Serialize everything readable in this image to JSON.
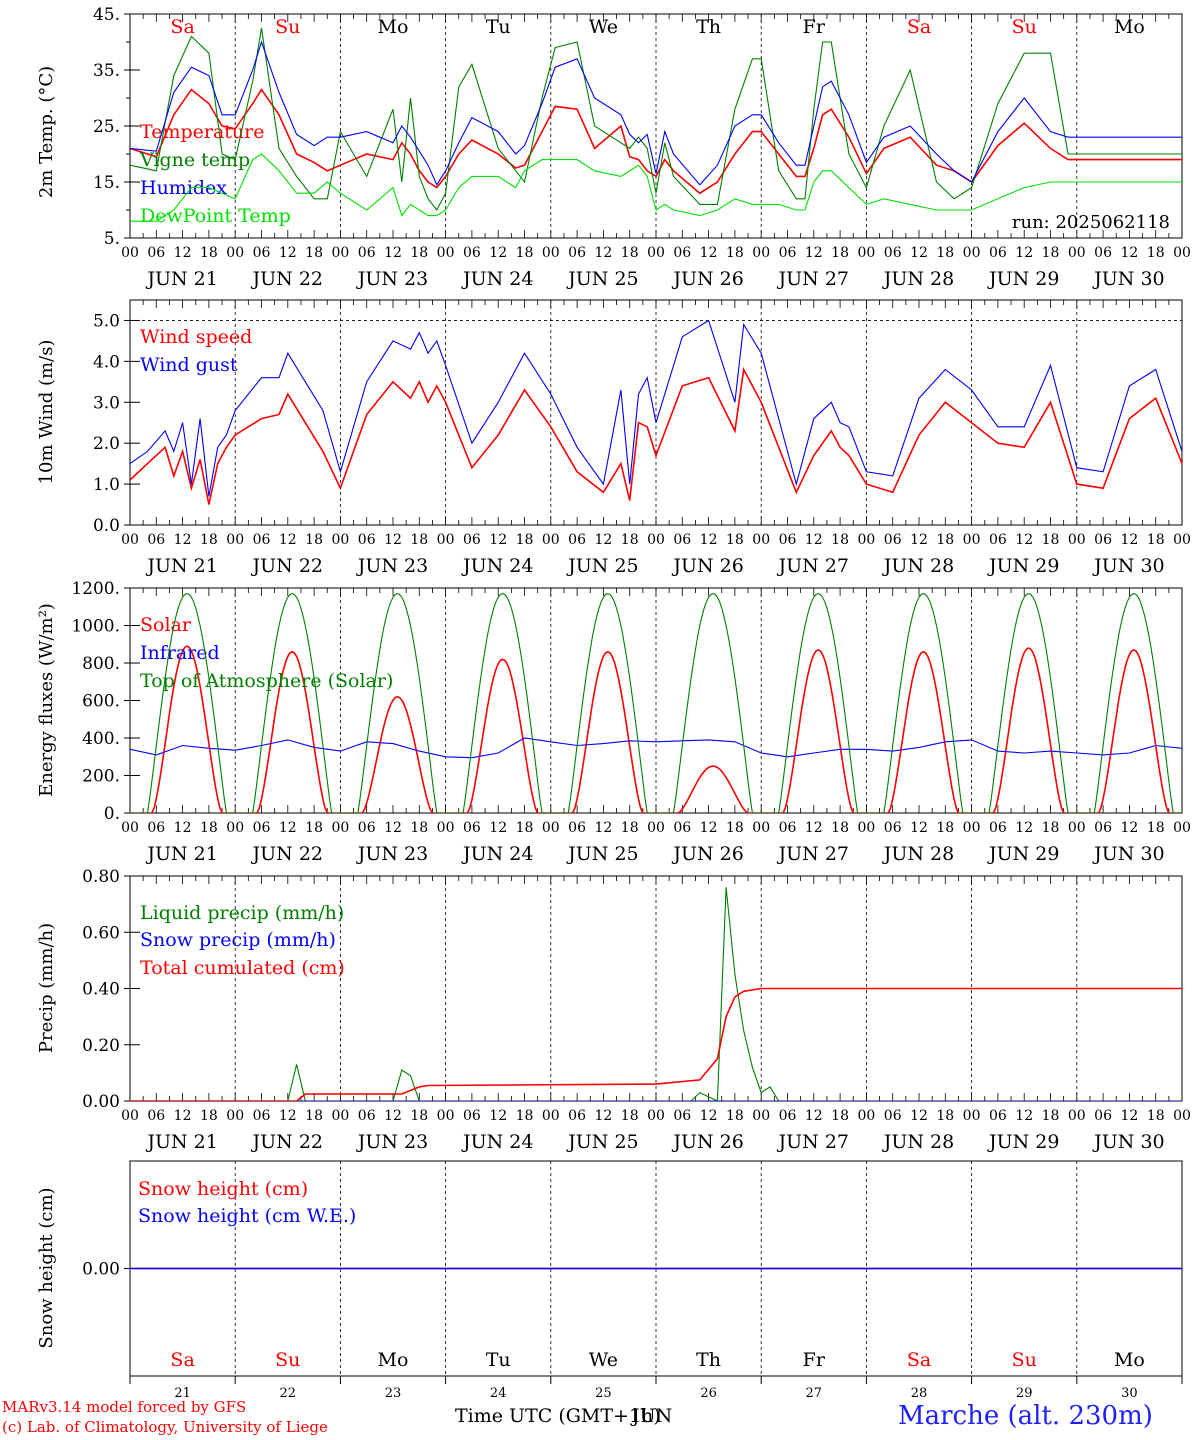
{
  "footer": {
    "credit_line1": "MARv3.14 model forced by GFS",
    "credit_line2": "(c) Lab. of Climatology, University of Liege",
    "xlabel": "Time UTC (GMT+1h)",
    "xlabel_overlay": "JUN",
    "station": "Marche (alt. 230m)"
  },
  "days": {
    "weekday": [
      "Sa",
      "Su",
      "Mo",
      "Tu",
      "We",
      "Th",
      "Fr",
      "Sa",
      "Su",
      "Mo"
    ],
    "weekend": [
      true,
      true,
      false,
      false,
      false,
      false,
      false,
      true,
      true,
      false
    ],
    "date_labels": [
      "JUN 21",
      "JUN 22",
      "JUN 23",
      "JUN 24",
      "JUN 25",
      "JUN 26",
      "JUN 27",
      "JUN 28",
      "JUN 29",
      "JUN 30"
    ],
    "day_numbers": [
      "21",
      "22",
      "23",
      "24",
      "25",
      "26",
      "27",
      "28",
      "29",
      "30"
    ],
    "hour_ticks": [
      "00",
      "06",
      "12",
      "18"
    ],
    "final_hour": "00"
  },
  "colors": {
    "red": "#ff0000",
    "green": "#008000",
    "blue": "#0000ff",
    "lime": "#00e000",
    "weekend": "#ff0000",
    "weekday": "#000000",
    "station": "#2020ff"
  },
  "chart_data": [
    {
      "type": "line",
      "ylabel": "2m Temp. (°C)",
      "ylim": [
        5,
        45
      ],
      "yticks": [
        "5.",
        "15.",
        "25.",
        "35.",
        "45."
      ],
      "ytick_values": [
        5,
        15,
        25,
        35,
        45
      ],
      "annotation": "run: 2025062118",
      "hours": [
        0,
        6,
        10,
        14,
        18,
        21,
        24,
        28,
        30,
        34,
        38,
        42,
        45,
        48,
        54,
        60,
        62,
        64,
        66,
        68,
        70,
        72,
        75,
        78,
        84,
        88,
        90,
        94,
        97,
        102,
        106,
        112,
        114,
        116,
        118,
        120,
        122,
        124,
        130,
        134,
        138,
        142,
        144,
        148,
        152,
        154,
        156,
        158,
        160,
        164,
        168,
        172,
        178,
        184,
        188,
        192,
        198,
        204,
        210,
        214,
        216,
        220,
        228,
        234,
        240
      ],
      "series": [
        {
          "name": "Temperature",
          "color": "red",
          "values": [
            21,
            19.5,
            27,
            31.5,
            29,
            25,
            24.5,
            29,
            31.5,
            27,
            20,
            18.5,
            17,
            18,
            20,
            19,
            22,
            20,
            17,
            15,
            14,
            16,
            20,
            22.5,
            20,
            17.5,
            18,
            24,
            28.5,
            28,
            21,
            25,
            19.5,
            19,
            17,
            16,
            19,
            17,
            13,
            15,
            20,
            24,
            24,
            20,
            16,
            16,
            21,
            27,
            28,
            23,
            16.5,
            21,
            23,
            18,
            17,
            15,
            21.5,
            25.5,
            21,
            19,
            19,
            19,
            19,
            19,
            19
          ]
        },
        {
          "name": "Vigne temp",
          "color": "green",
          "values": [
            18,
            17,
            34,
            41,
            38,
            20,
            19,
            33,
            42.5,
            21,
            16,
            12,
            12,
            24,
            16,
            28,
            15,
            30,
            16,
            12,
            10,
            13,
            32,
            36,
            21,
            17,
            15,
            30,
            39,
            40,
            25,
            22,
            21,
            23,
            21,
            13,
            22,
            16,
            11,
            11,
            28,
            37,
            37,
            17,
            12,
            12,
            28,
            40,
            40,
            20,
            14,
            25,
            35,
            15,
            12,
            14,
            29,
            38,
            38,
            20,
            20,
            20,
            20,
            20,
            20
          ]
        },
        {
          "name": "Humidex",
          "color": "blue",
          "values": [
            21,
            20.5,
            31,
            35.5,
            34,
            27,
            27,
            35,
            40,
            31,
            23.5,
            21.5,
            23,
            23,
            24,
            22,
            25,
            23,
            20.5,
            18,
            14.5,
            17,
            22,
            26.5,
            24,
            20,
            21.5,
            29,
            35.5,
            37,
            30,
            27,
            23.5,
            22,
            23.5,
            16.5,
            24,
            20,
            14.5,
            18,
            25,
            27,
            27,
            22,
            18,
            18,
            25,
            32,
            33,
            27,
            18.5,
            23,
            25,
            20,
            17,
            15,
            24,
            30,
            24,
            23,
            23,
            23,
            23,
            23,
            23
          ]
        },
        {
          "name": "DewPoint Temp",
          "color": "lime",
          "values": [
            8,
            8,
            10,
            14,
            14,
            13,
            12,
            19,
            20,
            17,
            13,
            13,
            15,
            13,
            10,
            14,
            9,
            11,
            10,
            9,
            9,
            10,
            14,
            16,
            16,
            14,
            17,
            19,
            19,
            19,
            17,
            16,
            17,
            18,
            16,
            10,
            11,
            10,
            9,
            10,
            12,
            11,
            11,
            11,
            10,
            10,
            15,
            17,
            17,
            14,
            11,
            12,
            11,
            10,
            10,
            10,
            12,
            14,
            15,
            15,
            15,
            15,
            15,
            15,
            15
          ]
        }
      ]
    },
    {
      "type": "line",
      "ylabel": "10m Wind (m/s)",
      "ylim": [
        0,
        5.5
      ],
      "yticks": [
        "0.0",
        "1.0",
        "2.0",
        "3.0",
        "4.0",
        "5.0"
      ],
      "ytick_values": [
        0,
        1,
        2,
        3,
        4,
        5
      ],
      "reference_line": 5.0,
      "hours": [
        0,
        4,
        8,
        10,
        12,
        14,
        16,
        18,
        20,
        22,
        24,
        30,
        34,
        36,
        40,
        44,
        48,
        54,
        60,
        64,
        66,
        68,
        70,
        72,
        78,
        84,
        90,
        96,
        102,
        108,
        112,
        114,
        116,
        118,
        120,
        126,
        132,
        138,
        140,
        144,
        148,
        152,
        156,
        160,
        162,
        164,
        168,
        174,
        180,
        186,
        192,
        198,
        204,
        210,
        216,
        222,
        228,
        234,
        240
      ],
      "series": [
        {
          "name": "Wind speed",
          "color": "red",
          "values": [
            1.1,
            1.5,
            1.9,
            1.2,
            1.8,
            0.9,
            1.6,
            0.5,
            1.5,
            1.9,
            2.2,
            2.6,
            2.7,
            3.2,
            2.5,
            1.8,
            0.9,
            2.7,
            3.5,
            3.1,
            3.5,
            3.0,
            3.4,
            3.0,
            1.4,
            2.2,
            3.3,
            2.4,
            1.3,
            0.8,
            1.5,
            0.6,
            2.5,
            2.4,
            1.7,
            3.4,
            3.6,
            2.3,
            3.8,
            3.0,
            1.9,
            0.8,
            1.7,
            2.3,
            1.9,
            1.7,
            1.0,
            0.8,
            2.2,
            3.0,
            2.5,
            2.0,
            1.9,
            3.0,
            1.0,
            0.9,
            2.6,
            3.1,
            1.5
          ]
        },
        {
          "name": "Wind gust",
          "color": "blue",
          "values": [
            1.5,
            1.8,
            2.3,
            1.8,
            2.5,
            1.0,
            2.6,
            0.7,
            1.9,
            2.2,
            2.8,
            3.6,
            3.6,
            4.2,
            3.5,
            2.8,
            1.3,
            3.5,
            4.5,
            4.3,
            4.7,
            4.2,
            4.5,
            3.9,
            2.0,
            3.0,
            4.2,
            3.2,
            1.9,
            1.0,
            3.3,
            1.0,
            3.2,
            3.6,
            2.5,
            4.6,
            5.0,
            3.0,
            4.9,
            4.2,
            2.6,
            1.0,
            2.6,
            3.0,
            2.5,
            2.4,
            1.3,
            1.2,
            3.1,
            3.8,
            3.3,
            2.4,
            2.4,
            3.9,
            1.4,
            1.3,
            3.4,
            3.8,
            1.8
          ]
        }
      ]
    },
    {
      "type": "line",
      "ylabel": "Energy fluxes (W/m²)",
      "ylim": [
        0,
        1200
      ],
      "yticks": [
        "0.",
        "200.",
        "400.",
        "600.",
        "800.",
        "1000.",
        "1200."
      ],
      "ytick_values": [
        0,
        200,
        400,
        600,
        800,
        1000,
        1200
      ],
      "series": [
        {
          "name": "Solar",
          "color": "red",
          "day_peaks": [
            890,
            860,
            620,
            820,
            860,
            250,
            870,
            860,
            880,
            870
          ]
        },
        {
          "name": "Infrared",
          "color": "blue",
          "hours": [
            0,
            6,
            12,
            18,
            24,
            30,
            36,
            42,
            48,
            54,
            60,
            66,
            72,
            78,
            84,
            90,
            96,
            102,
            108,
            114,
            120,
            126,
            132,
            138,
            144,
            150,
            156,
            162,
            168,
            174,
            180,
            186,
            192,
            198,
            204,
            210,
            216,
            222,
            228,
            234,
            240
          ],
          "values": [
            340,
            310,
            360,
            345,
            335,
            360,
            390,
            350,
            330,
            380,
            370,
            330,
            300,
            295,
            320,
            400,
            380,
            360,
            370,
            385,
            380,
            385,
            390,
            380,
            320,
            300,
            320,
            340,
            340,
            330,
            350,
            380,
            390,
            330,
            320,
            330,
            320,
            310,
            320,
            360,
            345
          ]
        },
        {
          "name": "Top of Atmosphere (Solar)",
          "color": "green",
          "day_peaks": [
            1170,
            1170,
            1170,
            1170,
            1170,
            1170,
            1170,
            1170,
            1170,
            1170
          ]
        }
      ]
    },
    {
      "type": "line",
      "ylabel": "Precip (mm/h)",
      "ylim": [
        0,
        0.8
      ],
      "yticks": [
        "0.00",
        "0.20",
        "0.40",
        "0.60",
        "0.80"
      ],
      "ytick_values": [
        0,
        0.2,
        0.4,
        0.6,
        0.8
      ],
      "series": [
        {
          "name": "Liquid precip (mm/h)",
          "color": "green",
          "hours": [
            0,
            36,
            38,
            40,
            42,
            60,
            62,
            64,
            66,
            68,
            124,
            128,
            130,
            134,
            136,
            138,
            140,
            142,
            144,
            146,
            148,
            240
          ],
          "values": [
            0,
            0,
            0.13,
            0,
            0,
            0,
            0.11,
            0.09,
            0,
            0,
            0,
            0,
            0.03,
            0,
            0.76,
            0.45,
            0.25,
            0.12,
            0.03,
            0.05,
            0,
            0
          ]
        },
        {
          "name": "Snow precip (mm/h)",
          "color": "blue",
          "hours": [
            0,
            240
          ],
          "values": [
            0,
            0
          ]
        },
        {
          "name": "Total cumulated (cm)",
          "color": "red",
          "hours": [
            0,
            38,
            40,
            62,
            66,
            68,
            120,
            130,
            134,
            136,
            138,
            140,
            144,
            148,
            240
          ],
          "values": [
            0,
            0,
            0.025,
            0.025,
            0.05,
            0.055,
            0.06,
            0.075,
            0.15,
            0.3,
            0.37,
            0.39,
            0.4,
            0.4,
            0.4
          ]
        }
      ]
    },
    {
      "type": "line",
      "ylabel": "Snow height (cm)",
      "ylim": [
        -1,
        1
      ],
      "yticks": [
        "0.00"
      ],
      "ytick_values": [
        0
      ],
      "series": [
        {
          "name": "Snow height (cm)",
          "color": "red",
          "hours": [
            0,
            240
          ],
          "values": [
            0,
            0
          ]
        },
        {
          "name": "Snow height (cm W.E.)",
          "color": "blue",
          "hours": [
            0,
            240
          ],
          "values": [
            0,
            0
          ]
        }
      ]
    }
  ]
}
